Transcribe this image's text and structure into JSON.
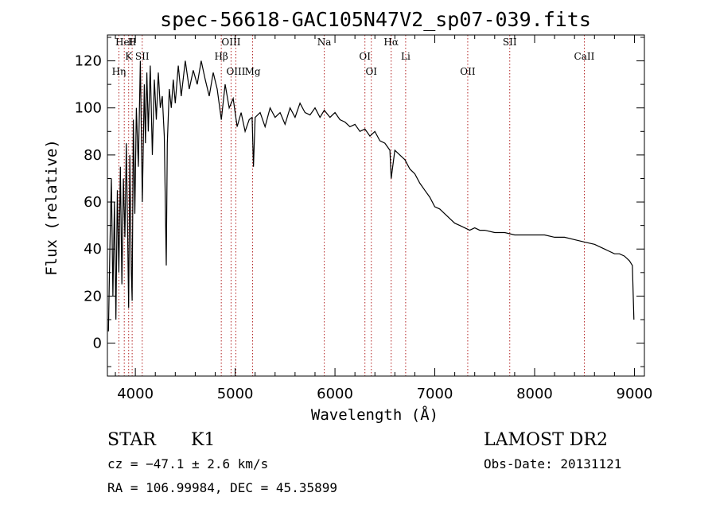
{
  "chart_data": {
    "type": "line",
    "title": "spec-56618-GAC105N47V2_sp07-039.fits",
    "xlabel": "Wavelength (Å)",
    "ylabel": "Flux (relative)",
    "xlim": [
      3720,
      9100
    ],
    "ylim": [
      -14,
      131
    ],
    "xticks": [
      4000,
      5000,
      6000,
      7000,
      8000,
      9000
    ],
    "yticks": [
      0,
      20,
      40,
      60,
      80,
      100,
      120
    ],
    "grid": false,
    "line_color": "#000000",
    "marker_color": "#b22222",
    "series": [
      {
        "x": [
          3730,
          3745,
          3760,
          3775,
          3790,
          3805,
          3820,
          3835,
          3850,
          3865,
          3880,
          3895,
          3910,
          3925,
          3933,
          3945,
          3960,
          3968,
          3980,
          3995,
          4010,
          4030,
          4050,
          4070,
          4090,
          4101,
          4115,
          4130,
          4150,
          4170,
          4190,
          4210,
          4230,
          4250,
          4270,
          4290,
          4300,
          4310,
          4320,
          4340,
          4360,
          4380,
          4400,
          4430,
          4460,
          4500,
          4540,
          4580,
          4620,
          4660,
          4700,
          4740,
          4780,
          4820,
          4861,
          4900,
          4940,
          4980,
          5020,
          5060,
          5100,
          5140,
          5170,
          5183,
          5200,
          5250,
          5300,
          5350,
          5400,
          5450,
          5500,
          5550,
          5600,
          5650,
          5700,
          5750,
          5800,
          5850,
          5893,
          5950,
          6000,
          6050,
          6100,
          6150,
          6200,
          6250,
          6300,
          6350,
          6400,
          6450,
          6500,
          6550,
          6563,
          6600,
          6650,
          6700,
          6750,
          6800,
          6850,
          6900,
          6950,
          7000,
          7050,
          7100,
          7150,
          7200,
          7250,
          7300,
          7350,
          7400,
          7450,
          7500,
          7600,
          7700,
          7800,
          7900,
          8000,
          8100,
          8200,
          8300,
          8400,
          8500,
          8600,
          8700,
          8800,
          8850,
          8900,
          8950,
          8980,
          8995
        ],
        "values": [
          5,
          40,
          70,
          20,
          60,
          10,
          65,
          30,
          75,
          25,
          70,
          45,
          85,
          40,
          15,
          80,
          30,
          18,
          95,
          55,
          100,
          75,
          120,
          60,
          110,
          85,
          115,
          90,
          118,
          80,
          112,
          95,
          115,
          100,
          105,
          88,
          60,
          33,
          85,
          108,
          100,
          112,
          102,
          118,
          105,
          120,
          108,
          116,
          110,
          120,
          112,
          105,
          115,
          108,
          95,
          110,
          100,
          104,
          92,
          98,
          90,
          95,
          96,
          75,
          96,
          98,
          92,
          100,
          96,
          98,
          93,
          100,
          96,
          102,
          98,
          97,
          100,
          96,
          99,
          96,
          98,
          95,
          94,
          92,
          93,
          90,
          91,
          88,
          90,
          86,
          85,
          82,
          70,
          82,
          80,
          78,
          74,
          72,
          68,
          65,
          62,
          58,
          57,
          55,
          53,
          51,
          50,
          49,
          48,
          49,
          48,
          48,
          47,
          47,
          46,
          46,
          46,
          46,
          45,
          45,
          44,
          43,
          42,
          40,
          38,
          38,
          37,
          35,
          33,
          10
        ],
        "lines": [
          {
            "name": "HeI",
            "x": 3889
          },
          {
            "name": "SII",
            "x": 4069
          },
          {
            "name": "Hη",
            "x": 3835
          },
          {
            "name": "H",
            "x": 3968
          },
          {
            "name": "K",
            "x": 3933
          },
          {
            "name": "OIII",
            "x": 5007
          },
          {
            "name": "OIII",
            "x": 4959
          },
          {
            "name": "Hβ",
            "x": 4861
          },
          {
            "name": "Mg",
            "x": 5175
          },
          {
            "name": "Na",
            "x": 5893
          },
          {
            "name": "OI",
            "x": 6300
          },
          {
            "name": "OI",
            "x": 6364
          },
          {
            "name": "Hα",
            "x": 6563
          },
          {
            "name": "Li",
            "x": 6708
          },
          {
            "name": "OII",
            "x": 7330
          },
          {
            "name": "SII",
            "x": 7751
          },
          {
            "name": "CaII",
            "x": 8498
          }
        ]
      }
    ]
  },
  "info": {
    "object_class": "STAR",
    "subclass": "K1",
    "survey": "LAMOST DR2",
    "cz": "cz = −47.1 ± 2.6 km/s",
    "obs_date": "Obs-Date: 20131121",
    "coords": "RA = 106.99984, DEC =  45.35899"
  }
}
